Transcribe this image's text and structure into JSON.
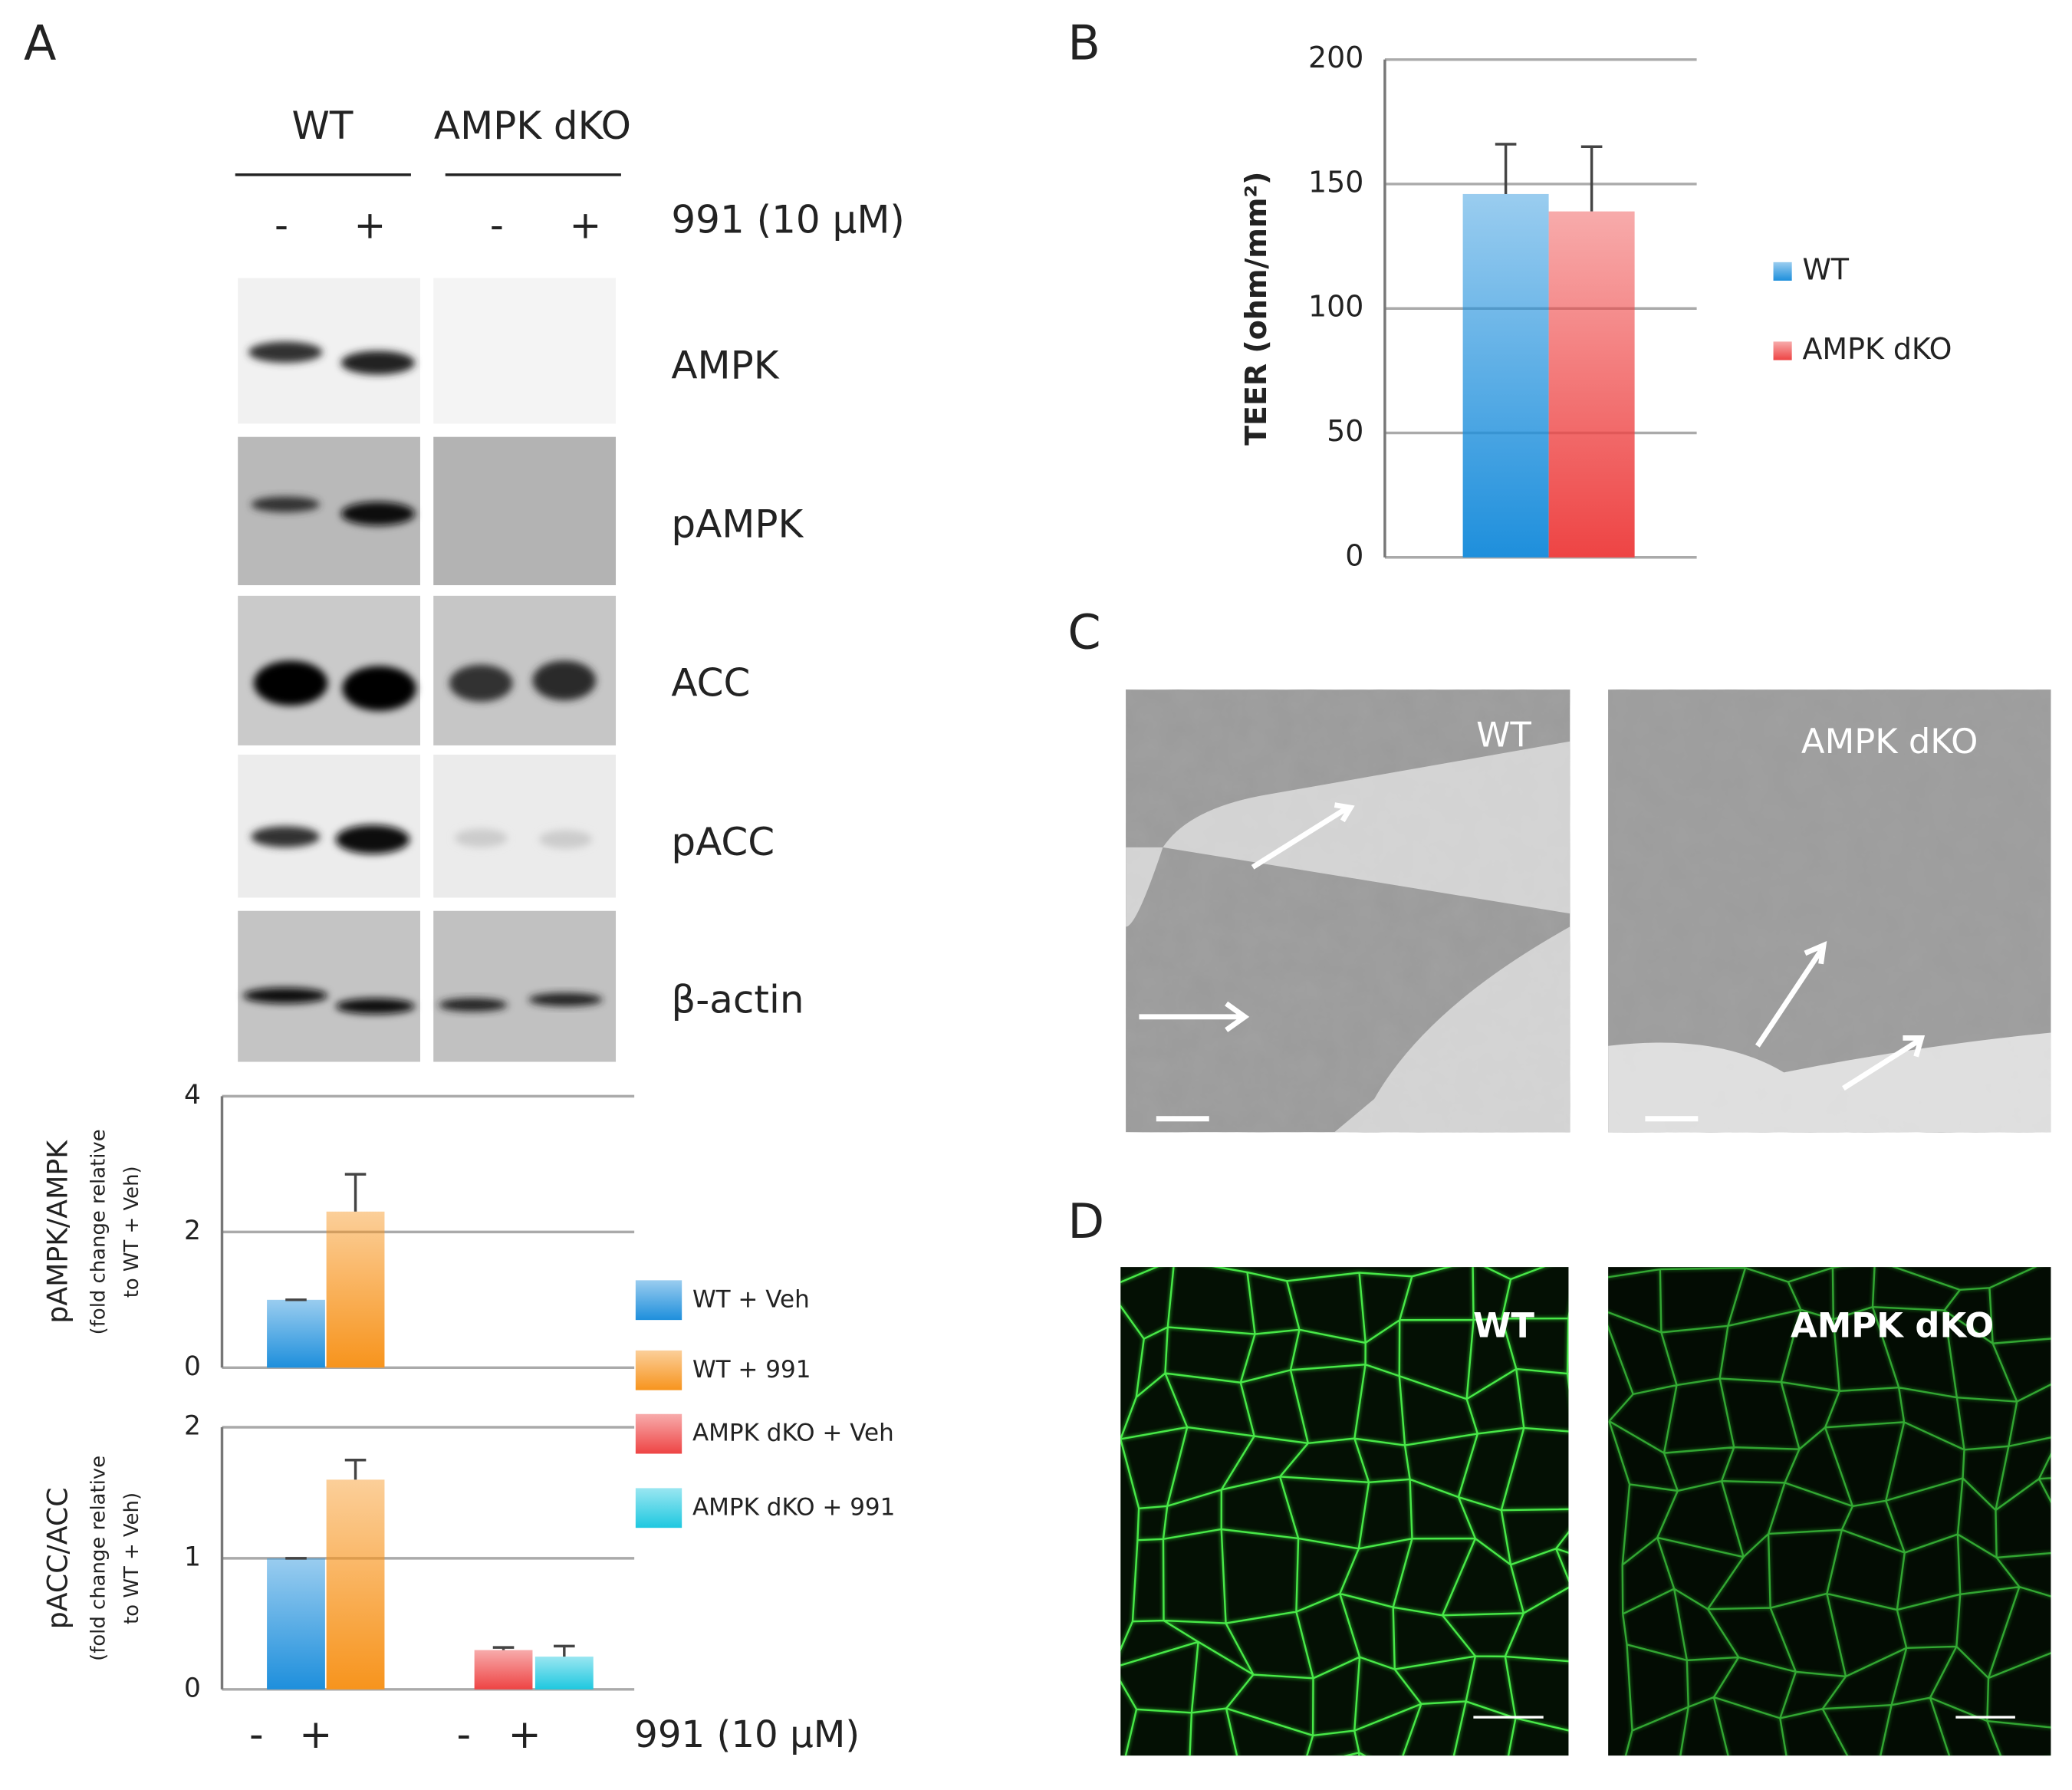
{
  "panel_labels": [
    "A",
    "B",
    "C",
    "D"
  ],
  "blot": {
    "groups": [
      "WT",
      "AMPK dKO"
    ],
    "treatment_signs": [
      "-",
      "+",
      "-",
      "+"
    ],
    "treatment": "991 (10 µM)",
    "rows": [
      "AMPK",
      "pAMPK",
      "ACC",
      "pACC",
      "β-actin"
    ]
  },
  "micrographs": {
    "C": [
      "WT",
      "AMPK dKO"
    ],
    "D": [
      "WT",
      "AMPK dKO"
    ]
  },
  "chart_data": [
    {
      "type": "bar",
      "ylabel": "pAMPK/AMPK",
      "ylabel_note": [
        "(fold change relative",
        "to WT + Veh)"
      ],
      "ylim": [
        0,
        4
      ],
      "yticks": [
        0,
        2,
        4
      ],
      "grid": true,
      "legend": "right",
      "categories": [
        "-",
        "+",
        "-",
        "+"
      ],
      "series": [
        {
          "name": "WT + Veh",
          "color": "#1e8fdc",
          "values": [
            1.0,
            null,
            null,
            null
          ],
          "errors": [
            0.0,
            null,
            null,
            null
          ]
        },
        {
          "name": "WT + 991",
          "color": "#f7941d",
          "values": [
            null,
            2.3,
            null,
            null
          ],
          "errors": [
            null,
            0.55,
            null,
            null
          ]
        },
        {
          "name": "AMPK dKO + Veh",
          "color": "#ee4444",
          "values": [
            null,
            null,
            null,
            null
          ],
          "errors": [
            null,
            null,
            null,
            null
          ]
        },
        {
          "name": "AMPK dKO + 991",
          "color": "#1ec8e0",
          "values": [
            null,
            null,
            null,
            null
          ],
          "errors": [
            null,
            null,
            null,
            null
          ]
        }
      ]
    },
    {
      "type": "bar",
      "ylabel": "pACC/ACC",
      "ylabel_note": [
        "(fold change relative",
        "to WT + Veh)"
      ],
      "ylim": [
        0,
        2
      ],
      "yticks": [
        0,
        1,
        2
      ],
      "grid": true,
      "categories": [
        "-",
        "+",
        "-",
        "+"
      ],
      "xlabel": "991 (10 µM)",
      "series": [
        {
          "color": "#1e8fdc",
          "values": [
            1.0,
            null,
            null,
            null
          ],
          "errors": [
            0.0,
            null,
            null,
            null
          ]
        },
        {
          "color": "#f7941d",
          "values": [
            null,
            1.6,
            null,
            null
          ],
          "errors": [
            null,
            0.15,
            null,
            null
          ]
        },
        {
          "color": "#ee4444",
          "values": [
            null,
            null,
            0.3,
            null
          ],
          "errors": [
            null,
            null,
            0.02,
            null
          ]
        },
        {
          "color": "#1ec8e0",
          "values": [
            null,
            null,
            null,
            0.25
          ],
          "errors": [
            null,
            null,
            null,
            0.08
          ]
        }
      ]
    },
    {
      "type": "bar",
      "ylabel": "TEER (ohm/mm²)",
      "ylim": [
        0,
        200
      ],
      "yticks": [
        0,
        50,
        100,
        150,
        200
      ],
      "grid": true,
      "legend": "right",
      "categories": [
        null
      ],
      "series": [
        {
          "name": "WT",
          "color": "#1e8fdc",
          "values": [
            146
          ],
          "errors": [
            20
          ]
        },
        {
          "name": "AMPK dKO",
          "color": "#ee4444",
          "values": [
            139
          ],
          "errors": [
            26
          ]
        }
      ]
    }
  ]
}
